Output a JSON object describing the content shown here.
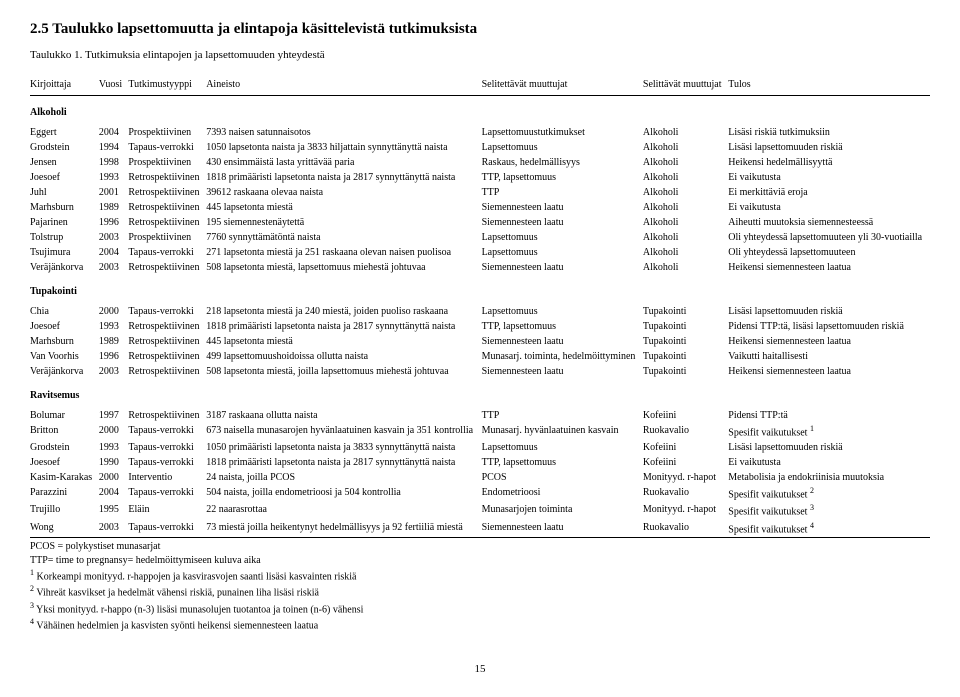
{
  "section_title": "2.5 Taulukko lapsettomuutta ja elintapoja käsittelevistä tutkimuksista",
  "subtitle": "Taulukko 1. Tutkimuksia elintapojen ja lapsettomuuden yhteydestä",
  "columns": [
    "Kirjoittaja",
    "Vuosi",
    "Tutkimustyyppi",
    "Aineisto",
    "Selitettävät muuttujat",
    "Selittävät muuttujat",
    "Tulos"
  ],
  "groups": [
    {
      "label": "Alkoholi",
      "rows": [
        [
          "Eggert",
          "2004",
          "Prospektiivinen",
          "7393 naisen satunnaisotos",
          "Lapsettomuustutkimukset",
          "Alkoholi",
          "Lisäsi riskiä tutkimuksiin"
        ],
        [
          "Grodstein",
          "1994",
          "Tapaus-verrokki",
          "1050 lapsetonta naista ja 3833 hiljattain synnyttänyttä naista",
          "Lapsettomuus",
          "Alkoholi",
          "Lisäsi lapsettomuuden riskiä"
        ],
        [
          "Jensen",
          "1998",
          "Prospektiivinen",
          "430 ensimmäistä lasta yrittävää paria",
          "Raskaus, hedelmällisyys",
          "Alkoholi",
          "Heikensi hedelmällisyyttä"
        ],
        [
          "Joesoef",
          "1993",
          "Retrospektiivinen",
          "1818 primääristi lapsetonta naista ja 2817 synnyttänyttä naista",
          "TTP, lapsettomuus",
          "Alkoholi",
          "Ei vaikutusta"
        ],
        [
          "Juhl",
          "2001",
          "Retrospektiivinen",
          "39612 raskaana olevaa naista",
          "TTP",
          "Alkoholi",
          "Ei merkittäviä eroja"
        ],
        [
          "Marhsburn",
          "1989",
          "Retrospektiivinen",
          "445 lapsetonta miestä",
          "Siemennesteen laatu",
          "Alkoholi",
          "Ei vaikutusta"
        ],
        [
          "Pajarinen",
          "1996",
          "Retrospektiivinen",
          "195 siemennestenäytettä",
          "Siemennesteen laatu",
          "Alkoholi",
          "Aiheutti muutoksia siemennesteessä"
        ],
        [
          "Tolstrup",
          "2003",
          "Prospektiivinen",
          "7760 synnyttämätöntä naista",
          "Lapsettomuus",
          "Alkoholi",
          "Oli yhteydessä lapsettomuuteen yli 30-vuotiailla"
        ],
        [
          "Tsujimura",
          "2004",
          "Tapaus-verrokki",
          "271 lapsetonta miestä ja 251 raskaana olevan naisen puolisoa",
          "Lapsettomuus",
          "Alkoholi",
          "Oli yhteydessä lapsettomuuteen"
        ],
        [
          "Veräjänkorva",
          "2003",
          "Retrospektiivinen",
          "508 lapsetonta miestä, lapsettomuus miehestä johtuvaa",
          "Siemennesteen laatu",
          "Alkoholi",
          "Heikensi siemennesteen laatua"
        ]
      ]
    },
    {
      "label": "Tupakointi",
      "rows": [
        [
          "Chia",
          "2000",
          "Tapaus-verrokki",
          "218 lapsetonta miestä ja 240 miestä, joiden puoliso raskaana",
          "Lapsettomuus",
          "Tupakointi",
          "Lisäsi lapsettomuuden riskiä"
        ],
        [
          "Joesoef",
          "1993",
          "Retrospektiivinen",
          "1818 primääristi lapsetonta naista ja 2817 synnyttänyttä naista",
          "TTP, lapsettomuus",
          "Tupakointi",
          "Pidensi TTP:tä, lisäsi lapsettomuuden riskiä"
        ],
        [
          "Marhsburn",
          "1989",
          "Retrospektiivinen",
          "445 lapsetonta miestä",
          "Siemennesteen laatu",
          "Tupakointi",
          "Heikensi siemennesteen laatua"
        ],
        [
          "Van Voorhis",
          "1996",
          "Retrospektiivinen",
          "499 lapsettomuushoidoissa ollutta naista",
          "Munasarj. toiminta, hedelmöittyminen",
          "Tupakointi",
          "Vaikutti haitallisesti"
        ],
        [
          "Veräjänkorva",
          "2003",
          "Retrospektiivinen",
          "508 lapsetonta miestä, joilla lapsettomuus miehestä johtuvaa",
          "Siemennesteen laatu",
          "Tupakointi",
          "Heikensi siemennesteen laatua"
        ]
      ]
    },
    {
      "label": "Ravitsemus",
      "rows": [
        [
          "Bolumar",
          "1997",
          "Retrospektiivinen",
          "3187 raskaana ollutta naista",
          "TTP",
          "Kofeiini",
          "Pidensi TTP:tä"
        ],
        [
          "Britton",
          "2000",
          "Tapaus-verrokki",
          "673 naisella munasarojen hyvänlaatuinen kasvain ja 351 kontrollia",
          "Munasarj. hyvänlaatuinen kasvain",
          "Ruokavalio",
          "Spesifit vaikutukset 1"
        ],
        [
          "Grodstein",
          "1993",
          "Tapaus-verrokki",
          "1050 primääristi lapsetonta naista ja 3833 synnyttänyttä naista",
          "Lapsettomuus",
          "Kofeiini",
          "Lisäsi lapsettomuuden riskiä"
        ],
        [
          "Joesoef",
          "1990",
          "Tapaus-verrokki",
          "1818 primääristi lapsetonta naista ja 2817 synnyttänyttä naista",
          "TTP, lapsettomuus",
          "Kofeiini",
          "Ei vaikutusta"
        ],
        [
          "Kasim-Karakas",
          "2000",
          "Interventio",
          "24 naista, joilla PCOS",
          "PCOS",
          "Monityyd. r-hapot",
          "Metabolisia ja endokriinisia muutoksia"
        ],
        [
          "Parazzini",
          "2004",
          "Tapaus-verrokki",
          "504 naista, joilla endometrioosi ja 504 kontrollia",
          "Endometrioosi",
          "Ruokavalio",
          "Spesifit vaikutukset 2"
        ],
        [
          "Trujillo",
          "1995",
          "Eläin",
          "22 naarasrottaa",
          "Munasarjojen toiminta",
          "Monityyd. r-hapot",
          "Spesifit vaikutukset 3"
        ],
        [
          "Wong",
          "2003",
          "Tapaus-verrokki",
          "73 miestä joilla heikentynyt hedelmällisyys ja 92 fertiiliä miestä",
          "Siemennesteen laatu",
          "Ruokavalio",
          "Spesifit vaikutukset 4"
        ]
      ]
    }
  ],
  "footnotes": [
    "PCOS = polykystiset munasarjat",
    "TTP= time to pregnansy= hedelmöittymiseen kuluva aika",
    "1 Korkeampi monityyd. r-happojen ja kasvirasvojen saanti lisäsi kasvainten riskiä",
    "2 Vihreät kasvikset ja hedelmät vähensi riskiä, punainen liha lisäsi riskiä",
    "3 Yksi monityyd. r-happo (n-3) lisäsi munasolujen tuotantoa ja toinen (n-6) vähensi",
    "4 Vähäinen hedelmien ja kasvisten syönti heikensi siemennesteen laatua"
  ],
  "page_number": "15"
}
